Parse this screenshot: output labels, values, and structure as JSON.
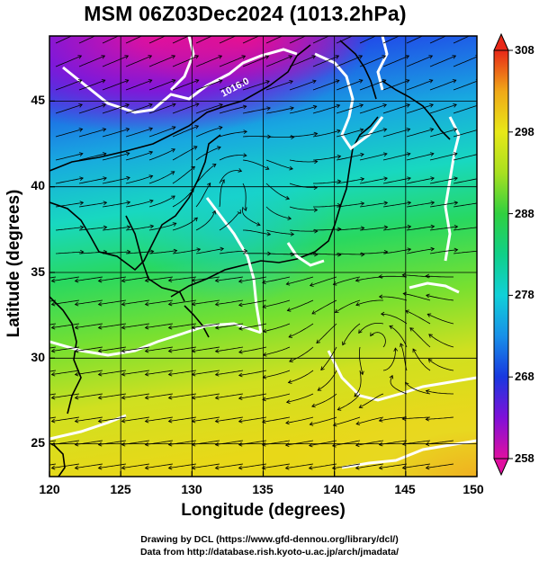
{
  "title": "MSM 06Z03Dec2024 (1013.2hPa)",
  "axes": {
    "xlabel": "Longitude (degrees)",
    "ylabel": "Latitude  (degrees)",
    "xticks": [
      "120",
      "125",
      "130",
      "135",
      "140",
      "145",
      "150"
    ],
    "yticks": [
      "25",
      "30",
      "35",
      "40",
      "45"
    ]
  },
  "colorbar": {
    "ticks": [
      "308",
      "298",
      "288",
      "278",
      "268",
      "258"
    ],
    "range": [
      258,
      308
    ],
    "colors": [
      "#e0109a",
      "#7a10d8",
      "#1838e0",
      "#1890e8",
      "#10d0d8",
      "#10d090",
      "#30d040",
      "#a8e020",
      "#e8e818",
      "#f0b818",
      "#f07018",
      "#e82818"
    ]
  },
  "map": {
    "contour_label": "1016.0",
    "lon_range": [
      120,
      150
    ],
    "lat_range": [
      22.4,
      48
    ]
  },
  "credits": {
    "line1": "Drawing by DCL (https://www.gfd-dennou.org/library/dcl/)",
    "line2": "Data from http://database.rish.kyoto-u.ac.jp/arch/jmadata/"
  }
}
